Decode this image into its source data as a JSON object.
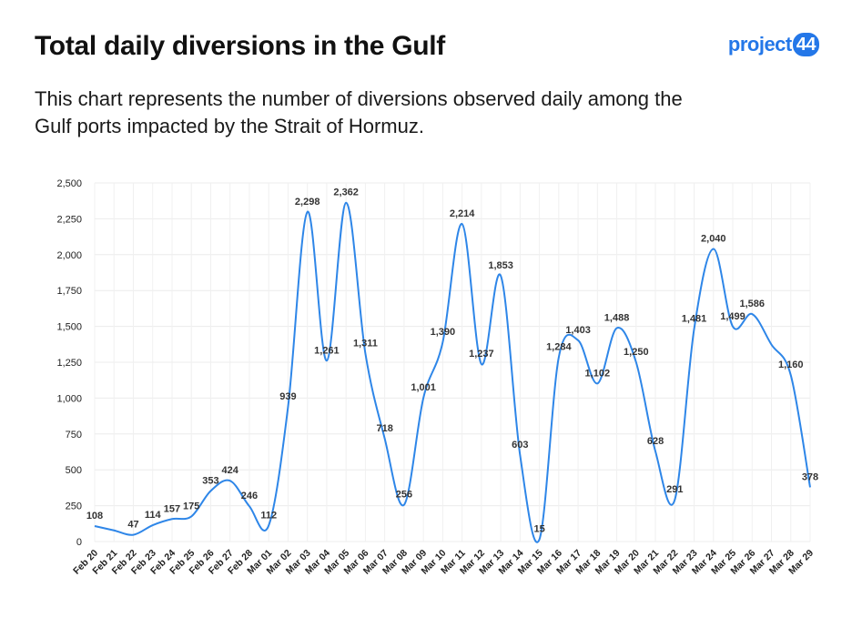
{
  "header": {
    "title": "Total daily diversions in the Gulf",
    "subtitle": "This chart represents the number of diversions observed daily among the Gulf ports impacted by the Strait of Hormuz."
  },
  "logo": {
    "text": "project",
    "badge": "44",
    "color": "#2477e8"
  },
  "chart_data": {
    "type": "line",
    "title": "",
    "xlabel": "",
    "ylabel": "",
    "ylim": [
      0,
      2500
    ],
    "yticks": [
      0,
      250,
      500,
      750,
      1000,
      1250,
      1500,
      1750,
      2000,
      2250,
      2500
    ],
    "ytick_labels": [
      "0",
      "250",
      "500",
      "750",
      "1,000",
      "1,250",
      "1,500",
      "1,750",
      "2,000",
      "2,250",
      "2,500"
    ],
    "grid": true,
    "line_color": "#2e86e8",
    "categories": [
      "Feb 20",
      "Feb 21",
      "Feb 22",
      "Feb 23",
      "Feb 24",
      "Feb 25",
      "Feb 26",
      "Feb 27",
      "Feb 28",
      "Mar 01",
      "Mar 02",
      "Mar 03",
      "Mar 04",
      "Mar 05",
      "Mar 06",
      "Mar 07",
      "Mar 08",
      "Mar 09",
      "Mar 10",
      "Mar 11",
      "Mar 12",
      "Mar 13",
      "Mar 14",
      "Mar 15",
      "Mar 16",
      "Mar 17",
      "Mar 18",
      "Mar 19",
      "Mar 20",
      "Mar 21",
      "Mar 22",
      "Mar 23",
      "Mar 24",
      "Mar 25",
      "Mar 26",
      "Mar 27",
      "Mar 28",
      "Mar 29"
    ],
    "series": [
      {
        "values": [
          108,
          null,
          47,
          114,
          157,
          175,
          353,
          424,
          246,
          112,
          939,
          2298,
          1261,
          2362,
          1311,
          718,
          256,
          1001,
          1390,
          2214,
          1237,
          1853,
          603,
          15,
          1284,
          1403,
          1102,
          1488,
          1250,
          628,
          291,
          1481,
          2040,
          1499,
          1586,
          null,
          1160,
          378
        ],
        "data_labels": [
          "108",
          "",
          "47",
          "114",
          "157",
          "175",
          "353",
          "424",
          "246",
          "112",
          "939",
          "2,298",
          "1,261",
          "2,362",
          "1,311",
          "718",
          "256",
          "1,001",
          "1,390",
          "2,214",
          "1,237",
          "1,853",
          "603",
          "15",
          "1,284",
          "1,403",
          "1,102",
          "1,488",
          "1,250",
          "628",
          "291",
          "1,481",
          "2,040",
          "1,499",
          "1,586",
          "",
          "1,160",
          "378"
        ]
      }
    ]
  }
}
